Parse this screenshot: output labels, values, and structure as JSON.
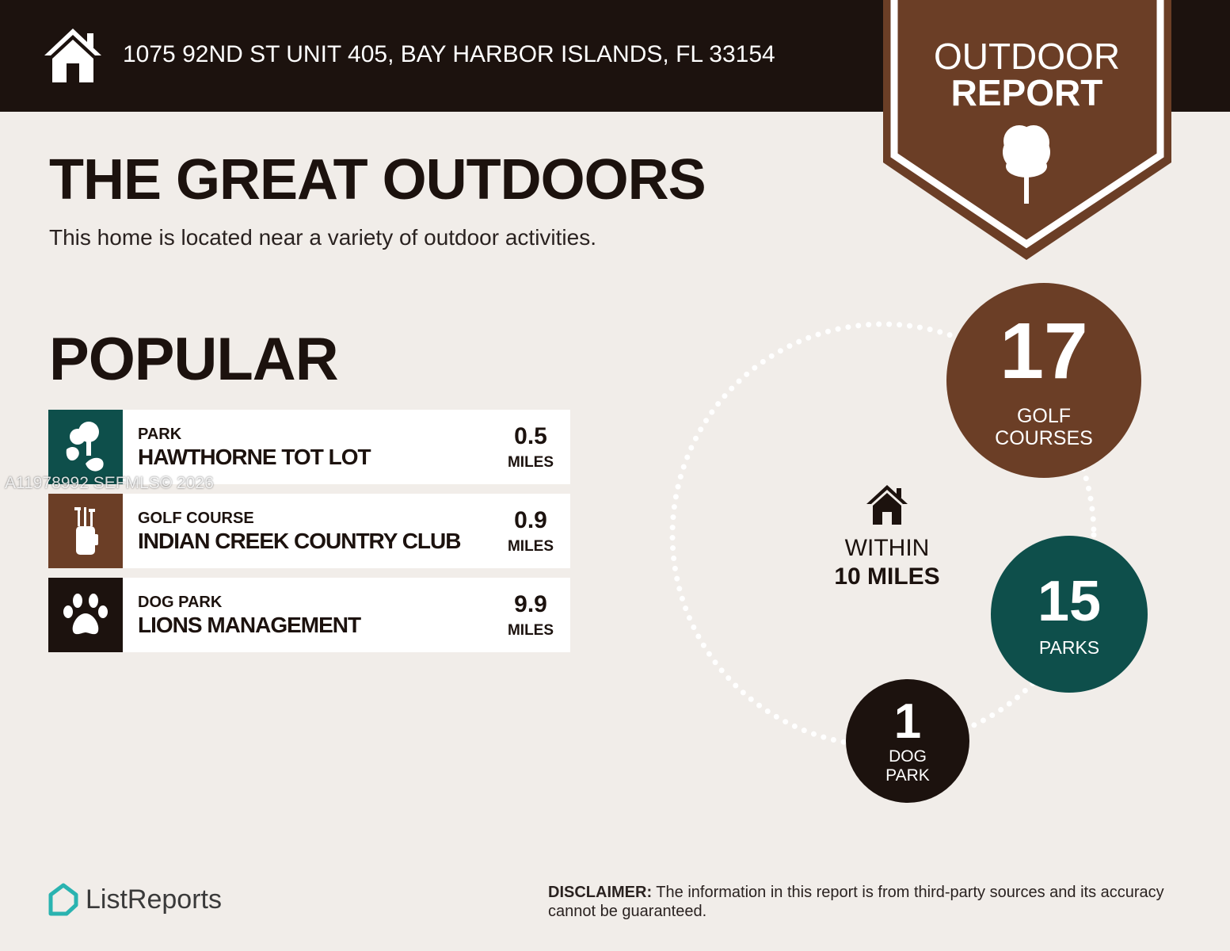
{
  "header": {
    "address": "1075 92ND ST UNIT 405, BAY HARBOR ISLANDS, FL 33154",
    "icon": "home-icon"
  },
  "banner": {
    "line1": "OUTDOOR",
    "line2": "REPORT",
    "icon": "tree-icon"
  },
  "title": "THE GREAT OUTDOORS",
  "subtitle": "This home is located near a variety of outdoor activities.",
  "popular": {
    "heading": "POPULAR",
    "items": [
      {
        "category": "PARK",
        "name": "HAWTHORNE TOT LOT",
        "distance": "0.5",
        "unit": "MILES",
        "icon": "park-icon",
        "color": "#0e4f4b"
      },
      {
        "category": "GOLF COURSE",
        "name": "INDIAN CREEK COUNTRY CLUB",
        "distance": "0.9",
        "unit": "MILES",
        "icon": "golf-bag-icon",
        "color": "#6b3e26"
      },
      {
        "category": "DOG PARK",
        "name": "LIONS MANAGEMENT",
        "distance": "9.9",
        "unit": "MILES",
        "icon": "paw-icon",
        "color": "#1c120e"
      }
    ]
  },
  "watermark": "A11978992  SEFMLS© 2026",
  "summary": {
    "within_line1": "WITHIN",
    "within_line2": "10 MILES",
    "stats": [
      {
        "count": "17",
        "label_line1": "GOLF",
        "label_line2": "COURSES",
        "color": "#6b3e26"
      },
      {
        "count": "15",
        "label_line1": "PARKS",
        "label_line2": "",
        "color": "#0e4f4b"
      },
      {
        "count": "1",
        "label_line1": "DOG",
        "label_line2": "PARK",
        "color": "#1c120e"
      }
    ]
  },
  "footer": {
    "logo": "ListReports",
    "disclaimer_label": "DISCLAIMER:",
    "disclaimer_text": " The information in this report is from third-party sources and its accuracy cannot be guaranteed."
  },
  "colors": {
    "dark": "#1c120e",
    "brown": "#6b3e26",
    "teal": "#0e4f4b",
    "background": "#f1ede9",
    "logo_teal": "#2ab3b0"
  }
}
